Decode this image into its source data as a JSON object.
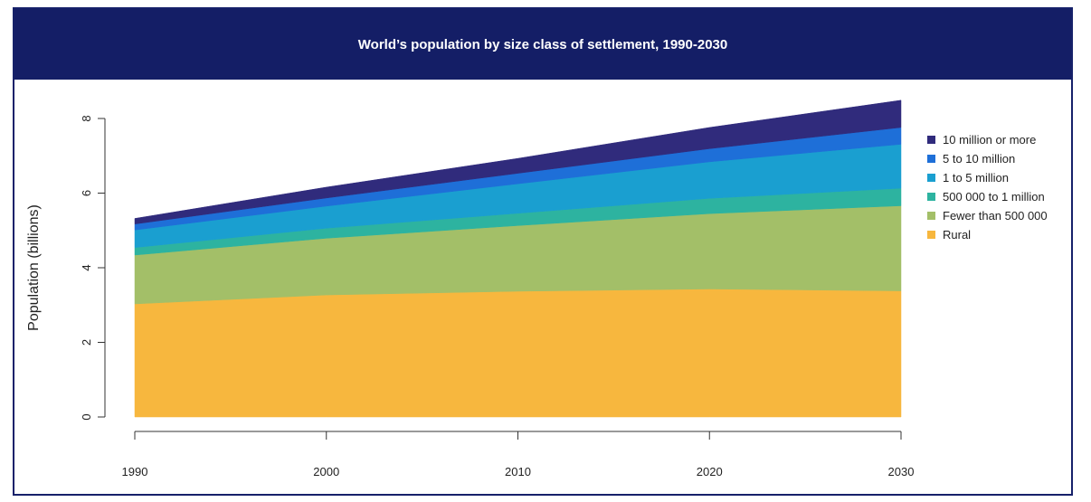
{
  "chart_data": {
    "type": "area",
    "stacked": true,
    "title": "World’s population by size class of settlement, 1990-2030",
    "ylabel": "Population (billions)",
    "xlabel": "",
    "x": [
      1990,
      2000,
      2010,
      2020,
      2030
    ],
    "xticks": [
      "1990",
      "2000",
      "2010",
      "2020",
      "2030"
    ],
    "yticks": [
      "0",
      "2",
      "4",
      "6",
      "8"
    ],
    "xlim": [
      1990,
      2030
    ],
    "ylim": [
      0,
      8
    ],
    "legend_position": "right",
    "series": [
      {
        "name": "Rural",
        "color": "#f7b73e",
        "values": [
          3.03,
          3.27,
          3.37,
          3.43,
          3.38
        ]
      },
      {
        "name": "Fewer than 500 000",
        "color": "#a3bf68",
        "values": [
          1.31,
          1.52,
          1.76,
          2.02,
          2.28
        ]
      },
      {
        "name": "500 000 to 1 million",
        "color": "#2db3a0",
        "values": [
          0.2,
          0.27,
          0.33,
          0.41,
          0.47
        ]
      },
      {
        "name": "1 to 5 million",
        "color": "#1a9fd0",
        "values": [
          0.47,
          0.59,
          0.79,
          0.98,
          1.18
        ]
      },
      {
        "name": "5 to 10 million",
        "color": "#1e6fd8",
        "values": [
          0.16,
          0.22,
          0.28,
          0.35,
          0.45
        ]
      },
      {
        "name": "10 million or more",
        "color": "#302b7c",
        "values": [
          0.15,
          0.29,
          0.4,
          0.57,
          0.73
        ]
      }
    ],
    "legend_order": [
      "10 million or more",
      "5 to 10 million",
      "1 to 5 million",
      "500 000 to 1 million",
      "Fewer than 500 000",
      "Rural"
    ]
  }
}
